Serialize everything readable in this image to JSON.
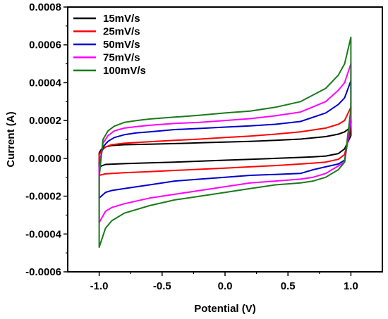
{
  "chart_data": {
    "type": "line",
    "xlabel": "Potential (V)",
    "ylabel": "Current (A)",
    "xlim": [
      -1.25,
      1.25
    ],
    "ylim": [
      -0.0006,
      0.0008
    ],
    "x_ticks": [
      -1.0,
      -0.5,
      0.0,
      0.5,
      1.0
    ],
    "x_tick_labels": [
      "-1.0",
      "-0.5",
      "0.0",
      "0.5",
      "1.0"
    ],
    "y_ticks": [
      -0.0006,
      -0.0004,
      -0.0002,
      0.0,
      0.0002,
      0.0004,
      0.0006,
      0.0008
    ],
    "y_tick_labels": [
      "-0.0006",
      "-0.0004",
      "-0.0002",
      "0.0000",
      "0.0002",
      "0.0004",
      "0.0006",
      "0.0008"
    ],
    "grid": false,
    "legend_position": "top-left",
    "series": [
      {
        "name": "15mV/s",
        "color": "#000000",
        "x": [
          -1.0,
          -0.98,
          -0.95,
          -0.9,
          -0.8,
          -0.6,
          -0.4,
          -0.2,
          0.0,
          0.2,
          0.4,
          0.6,
          0.8,
          0.9,
          0.95,
          1.0,
          1.0,
          0.95,
          0.9,
          0.8,
          0.7,
          0.6,
          0.4,
          0.2,
          0.0,
          -0.2,
          -0.4,
          -0.6,
          -0.8,
          -0.95,
          -1.0,
          -1.0
        ],
        "y": [
          3e-05,
          5e-05,
          6e-05,
          6.8e-05,
          7.2e-05,
          7.5e-05,
          7.8e-05,
          8.2e-05,
          8.6e-05,
          9e-05,
          9.5e-05,
          0.000102,
          0.000115,
          0.000128,
          0.00014,
          0.000165,
          0.00012,
          5e-05,
          2.5e-05,
          1.2e-05,
          8e-06,
          5e-06,
          0.0,
          -5e-06,
          -1e-05,
          -1.5e-05,
          -2e-05,
          -2.4e-05,
          -2.8e-05,
          -3.2e-05,
          -4.5e-05,
          3e-05
        ]
      },
      {
        "name": "25mV/s",
        "color": "#ff0000",
        "x": [
          -1.0,
          -0.98,
          -0.95,
          -0.9,
          -0.8,
          -0.6,
          -0.4,
          -0.2,
          0.0,
          0.2,
          0.4,
          0.6,
          0.8,
          0.9,
          0.95,
          1.0,
          1.0,
          0.95,
          0.9,
          0.8,
          0.7,
          0.6,
          0.4,
          0.2,
          0.0,
          -0.2,
          -0.4,
          -0.6,
          -0.8,
          -0.95,
          -1.0,
          -1.0
        ],
        "y": [
          2e-05,
          4e-05,
          6e-05,
          7.2e-05,
          8e-05,
          8.8e-05,
          9.5e-05,
          0.000102,
          0.00011,
          0.000118,
          0.000128,
          0.00014,
          0.00016,
          0.00018,
          0.0002,
          0.00027,
          0.00016,
          2e-05,
          -5e-06,
          -2e-05,
          -2.5e-05,
          -3e-05,
          -3.8e-05,
          -4.5e-05,
          -5.2e-05,
          -5.8e-05,
          -6.4e-05,
          -7e-05,
          -7.6e-05,
          -8.2e-05,
          -9e-05,
          2e-05
        ]
      },
      {
        "name": "50mV/s",
        "color": "#0000cc",
        "x": [
          -1.0,
          -0.97,
          -0.93,
          -0.88,
          -0.8,
          -0.7,
          -0.6,
          -0.4,
          -0.2,
          0.0,
          0.2,
          0.4,
          0.6,
          0.8,
          0.9,
          0.95,
          1.0,
          1.0,
          0.95,
          0.9,
          0.8,
          0.7,
          0.6,
          0.4,
          0.2,
          0.0,
          -0.2,
          -0.4,
          -0.6,
          -0.8,
          -0.9,
          -0.95,
          -1.0,
          -1.0
        ],
        "y": [
          -3e-05,
          6e-05,
          9e-05,
          0.00011,
          0.000125,
          0.000135,
          0.00014,
          0.000152,
          0.000158,
          0.000165,
          0.000172,
          0.00018,
          0.000195,
          0.00024,
          0.000285,
          0.00032,
          0.00041,
          0.00019,
          -1e-05,
          -3e-05,
          -4.5e-05,
          -6e-05,
          -8e-05,
          -8.5e-05,
          -9e-05,
          -0.0001,
          -0.00011,
          -0.00012,
          -0.00014,
          -0.00016,
          -0.00017,
          -0.00018,
          -0.00021,
          -3e-05
        ]
      },
      {
        "name": "75mV/s",
        "color": "#ff00ff",
        "x": [
          -1.0,
          -0.97,
          -0.93,
          -0.88,
          -0.8,
          -0.7,
          -0.6,
          -0.4,
          -0.2,
          0.0,
          0.2,
          0.4,
          0.6,
          0.8,
          0.9,
          0.95,
          1.0,
          1.0,
          0.95,
          0.9,
          0.8,
          0.7,
          0.6,
          0.4,
          0.2,
          0.0,
          -0.2,
          -0.4,
          -0.6,
          -0.8,
          -0.9,
          -0.95,
          -1.0,
          -1.0
        ],
        "y": [
          -5e-05,
          8e-05,
          0.00012,
          0.000145,
          0.00016,
          0.000168,
          0.000175,
          0.000185,
          0.00019,
          0.0002,
          0.00021,
          0.000225,
          0.000245,
          0.0003,
          0.00036,
          0.0004,
          0.0005,
          0.00021,
          -2e-05,
          -4e-05,
          -8e-05,
          -0.0001,
          -0.00011,
          -0.00012,
          -0.00013,
          -0.00015,
          -0.00017,
          -0.00019,
          -0.00021,
          -0.00024,
          -0.00026,
          -0.00028,
          -0.00034,
          -5e-05
        ]
      },
      {
        "name": "100mV/s",
        "color": "#1a7a1a",
        "x": [
          -1.0,
          -0.97,
          -0.93,
          -0.88,
          -0.8,
          -0.7,
          -0.6,
          -0.4,
          -0.2,
          0.0,
          0.2,
          0.4,
          0.6,
          0.8,
          0.9,
          0.95,
          1.0,
          1.0,
          0.95,
          0.9,
          0.8,
          0.7,
          0.6,
          0.4,
          0.2,
          0.0,
          -0.2,
          -0.4,
          -0.6,
          -0.8,
          -0.9,
          -0.95,
          -1.0,
          -1.0
        ],
        "y": [
          -0.0001,
          0.0001,
          0.000145,
          0.00017,
          0.00019,
          0.0002,
          0.000208,
          0.000218,
          0.000228,
          0.00024,
          0.00025,
          0.00027,
          0.0003,
          0.00037,
          0.00044,
          0.0005,
          0.00064,
          0.00026,
          -2e-05,
          -6e-05,
          -0.0001,
          -0.00012,
          -0.00013,
          -0.00014,
          -0.00016,
          -0.00018,
          -0.0002,
          -0.00022,
          -0.00025,
          -0.00029,
          -0.00033,
          -0.00037,
          -0.00047,
          -0.0001
        ]
      }
    ]
  }
}
